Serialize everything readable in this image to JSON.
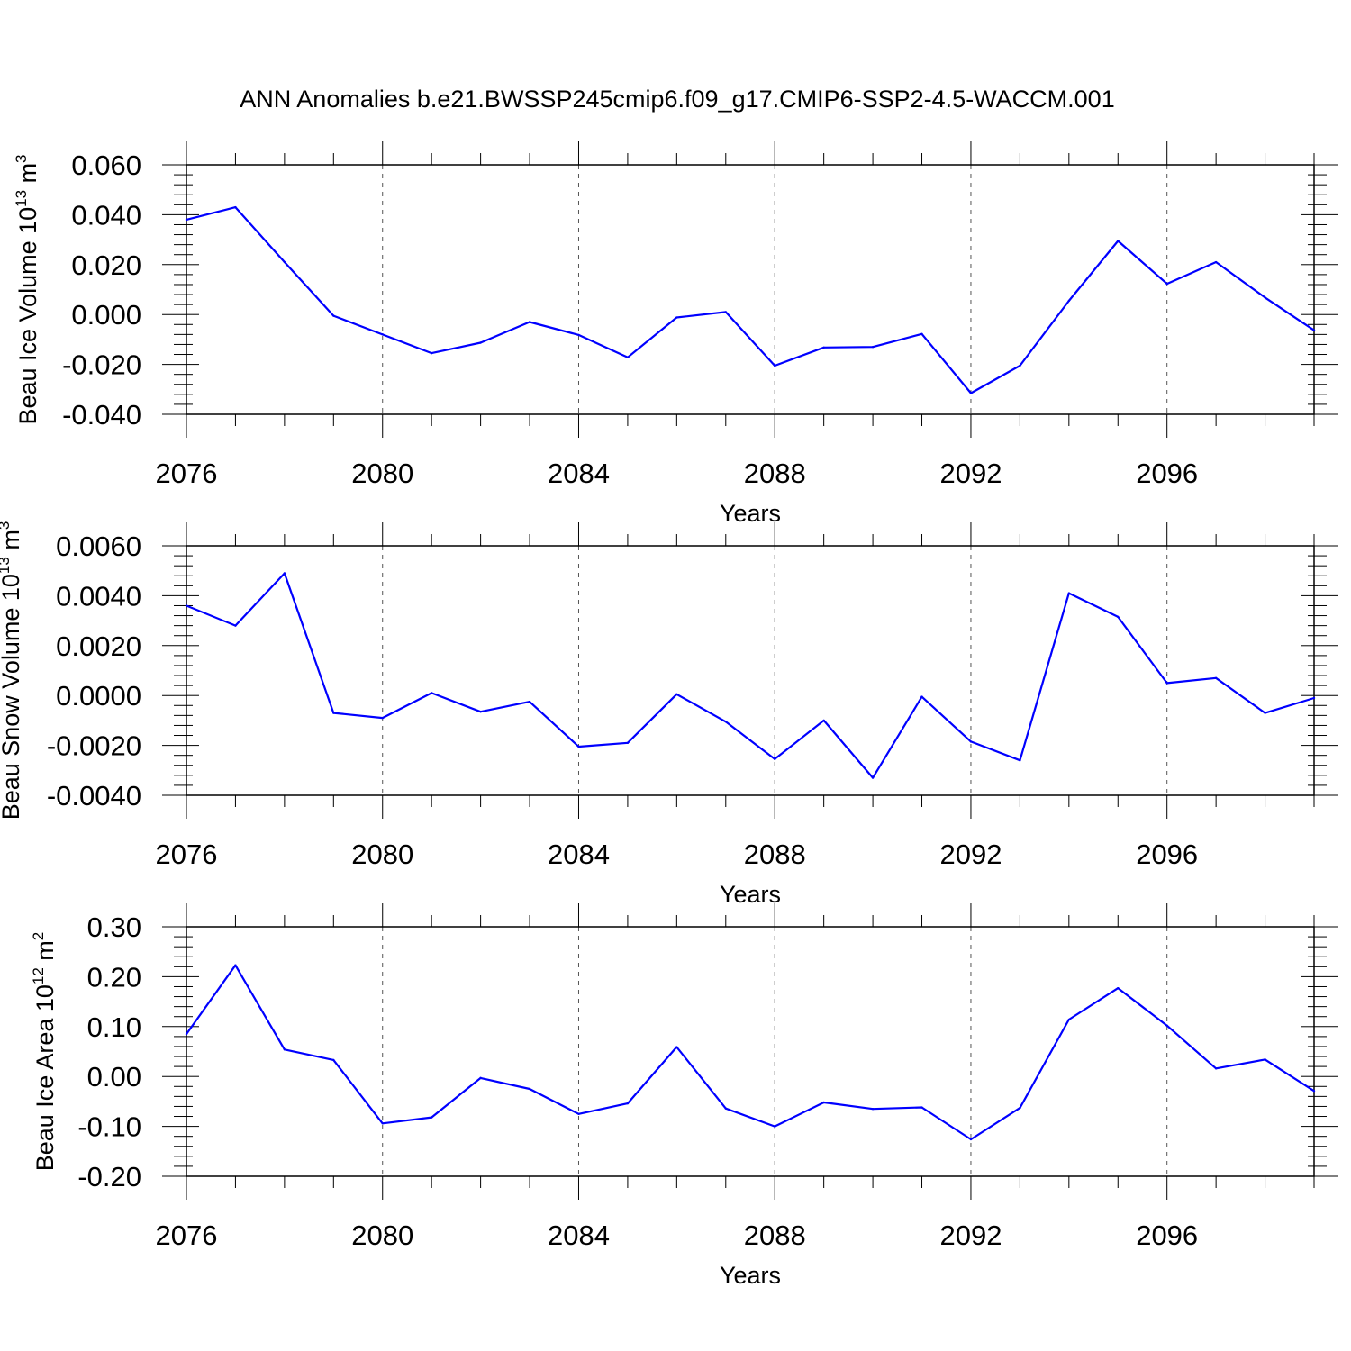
{
  "title": "ANN Anomalies b.e21.BWSSP245cmip6.f09_g17.CMIP6-SSP2-4.5-WACCM.001",
  "line_color": "#0000ff",
  "chart_data": [
    {
      "type": "line",
      "ylabel": "Beau Ice Volume 10^13 m^3",
      "ylabel_base": "Beau Ice Volume 10",
      "ylabel_exp": "13",
      "ylabel_unit": " m",
      "ylabel_unit_exp": "3",
      "xlabel": "Years",
      "xlim": [
        2076,
        2099
      ],
      "ylim": [
        -0.04,
        0.06
      ],
      "x_ticks": [
        "2076",
        "2080",
        "2084",
        "2088",
        "2092",
        "2096"
      ],
      "y_ticks": [
        "-0.040",
        "-0.020",
        "0.000",
        "0.020",
        "0.040",
        "0.060"
      ],
      "x": [
        2076,
        2077,
        2078,
        2079,
        2080,
        2081,
        2082,
        2083,
        2084,
        2085,
        2086,
        2087,
        2088,
        2089,
        2090,
        2091,
        2092,
        2093,
        2094,
        2095,
        2096,
        2097,
        2098,
        2099
      ],
      "values": [
        0.038,
        0.043,
        0.021,
        -0.0005,
        -0.008,
        -0.0155,
        -0.0113,
        -0.003,
        -0.0082,
        -0.0172,
        -0.0012,
        0.001,
        -0.0205,
        -0.0132,
        -0.013,
        -0.0078,
        -0.0315,
        -0.0205,
        0.0055,
        0.0295,
        0.0123,
        0.021,
        0.0068,
        -0.0063
      ]
    },
    {
      "type": "line",
      "ylabel": "Beau Snow Volume 10^13 m^3",
      "ylabel_base": "Beau Snow Volume 10",
      "ylabel_exp": "13",
      "ylabel_unit": " m",
      "ylabel_unit_exp": "3",
      "xlabel": "Years",
      "xlim": [
        2076,
        2099
      ],
      "ylim": [
        -0.004,
        0.006
      ],
      "x_ticks": [
        "2076",
        "2080",
        "2084",
        "2088",
        "2092",
        "2096"
      ],
      "y_ticks": [
        "-0.0040",
        "-0.0020",
        "0.0000",
        "0.0020",
        "0.0040",
        "0.0060"
      ],
      "x": [
        2076,
        2077,
        2078,
        2079,
        2080,
        2081,
        2082,
        2083,
        2084,
        2085,
        2086,
        2087,
        2088,
        2089,
        2090,
        2091,
        2092,
        2093,
        2094,
        2095,
        2096,
        2097,
        2098,
        2099
      ],
      "values": [
        0.0036,
        0.0028,
        0.0049,
        -0.0007,
        -0.0009,
        0.0001,
        -0.00065,
        -0.00025,
        -0.00205,
        -0.0019,
        5e-05,
        -0.00105,
        -0.00255,
        -0.001,
        -0.0033,
        -5e-05,
        -0.00185,
        -0.0026,
        0.0041,
        0.00315,
        0.0005,
        0.0007,
        -0.0007,
        -0.0001
      ]
    },
    {
      "type": "line",
      "ylabel": "Beau Ice Area 10^12 m^2",
      "ylabel_base": "Beau Ice Area 10",
      "ylabel_exp": "12",
      "ylabel_unit": " m",
      "ylabel_unit_exp": "2",
      "xlabel": "Years",
      "xlim": [
        2076,
        2099
      ],
      "ylim": [
        -0.2,
        0.3
      ],
      "x_ticks": [
        "2076",
        "2080",
        "2084",
        "2088",
        "2092",
        "2096"
      ],
      "y_ticks": [
        "-0.20",
        "-0.10",
        "0.00",
        "0.10",
        "0.20",
        "0.30"
      ],
      "x": [
        2076,
        2077,
        2078,
        2079,
        2080,
        2081,
        2082,
        2083,
        2084,
        2085,
        2086,
        2087,
        2088,
        2089,
        2090,
        2091,
        2092,
        2093,
        2094,
        2095,
        2096,
        2097,
        2098,
        2099
      ],
      "values": [
        0.085,
        0.223,
        0.054,
        0.033,
        -0.094,
        -0.082,
        -0.003,
        -0.025,
        -0.075,
        -0.054,
        0.059,
        -0.064,
        -0.1,
        -0.052,
        -0.065,
        -0.062,
        -0.126,
        -0.063,
        0.114,
        0.177,
        0.102,
        0.016,
        0.034,
        -0.029
      ]
    }
  ]
}
